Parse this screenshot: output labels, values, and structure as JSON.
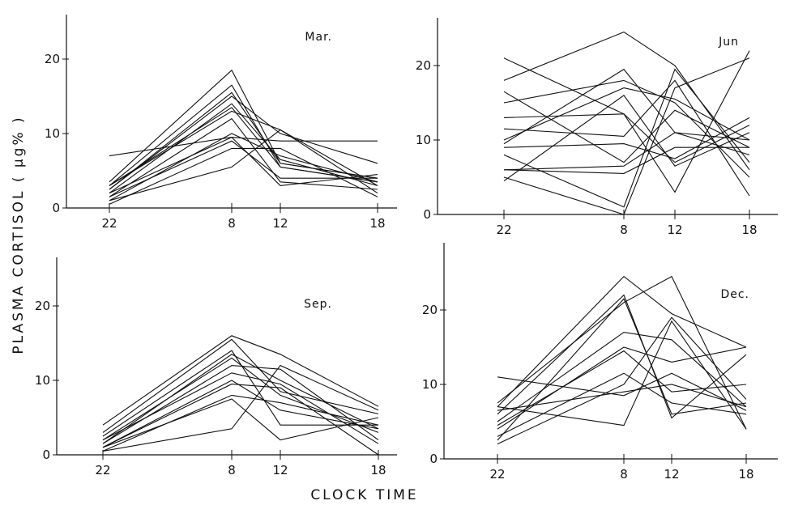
{
  "figure": {
    "ylabel": "PLASMA  CORTISOL ( µg% )",
    "xlabel": "CLOCK   TIME"
  },
  "chart_data": [
    {
      "type": "line",
      "title": "Mar.",
      "x": [
        "22",
        "8",
        "12",
        "18"
      ],
      "yticks": [
        0,
        10,
        20
      ],
      "ylim": [
        0,
        26
      ],
      "series": [
        {
          "values": [
            3.5,
            18.5,
            6,
            4
          ]
        },
        {
          "values": [
            3,
            16.5,
            5.5,
            3.5
          ]
        },
        {
          "values": [
            2.5,
            15.5,
            6,
            4
          ]
        },
        {
          "values": [
            2,
            14,
            6.5,
            3
          ]
        },
        {
          "values": [
            3,
            13,
            10.5,
            2
          ]
        },
        {
          "values": [
            1,
            10,
            7,
            3.5
          ]
        },
        {
          "values": [
            1.5,
            9,
            4,
            4
          ]
        },
        {
          "values": [
            0.5,
            8,
            8,
            1.5
          ]
        },
        {
          "values": [
            1,
            5.5,
            10.5,
            3
          ]
        },
        {
          "values": [
            7,
            9.5,
            9,
            9
          ]
        },
        {
          "values": [
            2,
            9.5,
            3,
            4.5
          ]
        },
        {
          "values": [
            2.5,
            15,
            10,
            6
          ]
        },
        {
          "values": [
            1.5,
            12,
            3.5,
            2.5
          ]
        },
        {
          "values": [
            3,
            13.5,
            5.5,
            3.5
          ]
        }
      ]
    },
    {
      "type": "line",
      "title": "Jun",
      "x": [
        "22",
        "8",
        "12",
        "18"
      ],
      "yticks": [
        0,
        10,
        20
      ],
      "ylim": [
        0,
        26
      ],
      "series": [
        {
          "values": [
            18,
            24.5,
            20,
            6
          ]
        },
        {
          "values": [
            21,
            13.5,
            3,
            22
          ]
        },
        {
          "values": [
            16.5,
            7,
            14,
            9
          ]
        },
        {
          "values": [
            13,
            13.5,
            7,
            12
          ]
        },
        {
          "values": [
            9.5,
            19.5,
            11,
            8
          ]
        },
        {
          "values": [
            10,
            17,
            15.5,
            10
          ]
        },
        {
          "values": [
            11.5,
            10.5,
            18,
            2.5
          ]
        },
        {
          "values": [
            8,
            1,
            19.5,
            7
          ]
        },
        {
          "values": [
            6,
            5.5,
            9,
            9
          ]
        },
        {
          "values": [
            5,
            0,
            17,
            21
          ]
        },
        {
          "values": [
            4.5,
            16,
            6.5,
            11
          ]
        },
        {
          "values": [
            9,
            9.5,
            7.5,
            13
          ]
        },
        {
          "values": [
            15,
            18,
            15,
            5
          ]
        },
        {
          "values": [
            6,
            6.5,
            11,
            10
          ]
        }
      ]
    },
    {
      "type": "line",
      "title": "Sep.",
      "x": [
        "22",
        "8",
        "12",
        "18"
      ],
      "yticks": [
        0,
        10,
        20
      ],
      "ylim": [
        0,
        26
      ],
      "series": [
        {
          "values": [
            4,
            16,
            13.5,
            6.5
          ]
        },
        {
          "values": [
            3,
            15.5,
            8.5,
            5.5
          ]
        },
        {
          "values": [
            2.5,
            14,
            4,
            4
          ]
        },
        {
          "values": [
            2,
            13,
            8,
            3
          ]
        },
        {
          "values": [
            1.5,
            12,
            11.5,
            2
          ]
        },
        {
          "values": [
            1,
            10,
            6,
            3.5
          ]
        },
        {
          "values": [
            1,
            9.5,
            9,
            0
          ]
        },
        {
          "values": [
            0.5,
            8,
            7,
            4
          ]
        },
        {
          "values": [
            0.5,
            3.5,
            12,
            6
          ]
        },
        {
          "values": [
            1,
            7.5,
            2,
            5
          ]
        },
        {
          "values": [
            2,
            11,
            9.5,
            1.5
          ]
        },
        {
          "values": [
            1.5,
            13.5,
            10,
            3.5
          ]
        }
      ]
    },
    {
      "type": "line",
      "title": "Dec.",
      "x": [
        "22",
        "8",
        "12",
        "18"
      ],
      "yticks": [
        0,
        10,
        20
      ],
      "ylim": [
        0,
        26
      ],
      "series": [
        {
          "values": [
            7,
            24.5,
            19.5,
            15
          ]
        },
        {
          "values": [
            6,
            22,
            5.5,
            14
          ]
        },
        {
          "values": [
            7.5,
            21,
            24.5,
            4
          ]
        },
        {
          "values": [
            5,
            17,
            16,
            7
          ]
        },
        {
          "values": [
            4,
            15,
            13,
            15
          ]
        },
        {
          "values": [
            3,
            11.5,
            7.5,
            6
          ]
        },
        {
          "values": [
            2,
            10,
            19,
            8
          ]
        },
        {
          "values": [
            11,
            8.5,
            11.5,
            6.5
          ]
        },
        {
          "values": [
            7,
            4.5,
            18.5,
            4
          ]
        },
        {
          "values": [
            6.5,
            9,
            10,
            7
          ]
        },
        {
          "values": [
            2.5,
            21.5,
            6,
            7.5
          ]
        },
        {
          "values": [
            4.5,
            14.5,
            9,
            10
          ]
        }
      ]
    }
  ]
}
